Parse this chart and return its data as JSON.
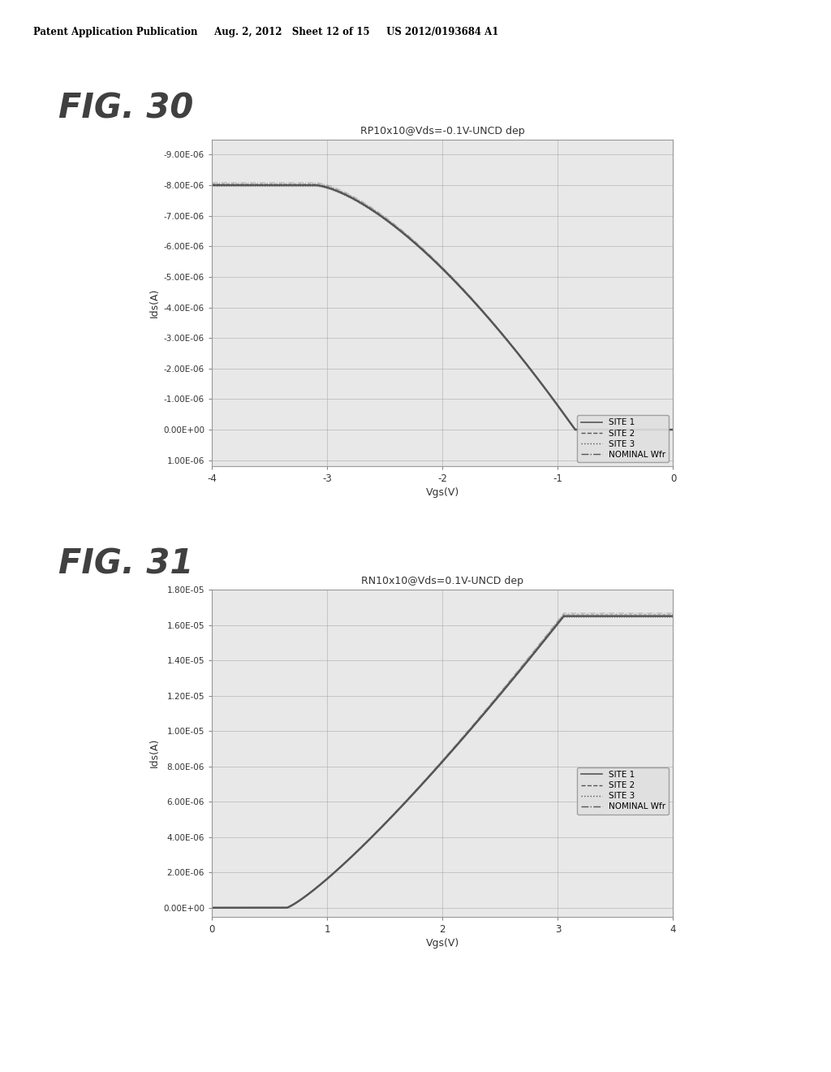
{
  "header_text": "Patent Application Publication     Aug. 2, 2012   Sheet 12 of 15     US 2012/0193684 A1",
  "fig30_label": "FIG. 30",
  "fig31_label": "FIG. 31",
  "fig30_title": "RP10x10@Vds=-0.1V-UNCD dep",
  "fig31_title": "RN10x10@Vds=0.1V-UNCD dep",
  "fig30_xlabel": "Vgs(V)",
  "fig31_xlabel": "Vgs(V)",
  "fig30_ylabel": "Ids(A)",
  "fig31_ylabel": "Ids(A)",
  "fig30_xlim": [
    -4,
    0
  ],
  "fig31_xlim": [
    0,
    4
  ],
  "fig30_yticks": [
    -9e-06,
    -8e-06,
    -7e-06,
    -6e-06,
    -5e-06,
    -4e-06,
    -3e-06,
    -2e-06,
    -1e-06,
    0.0,
    1e-06
  ],
  "fig31_yticks": [
    0,
    2e-06,
    4e-06,
    6e-06,
    8e-06,
    1e-05,
    1.2e-05,
    1.4e-05,
    1.6e-05,
    1.8e-05
  ],
  "fig30_xticks": [
    -4,
    -3,
    -2,
    -1,
    0
  ],
  "fig31_xticks": [
    0,
    1,
    2,
    3,
    4
  ],
  "fig30_ytick_labels": [
    "-9.00E-06",
    "-8.00E-06",
    "-7.00E-06",
    "-6.00E-06",
    "-5.00E-06",
    "-4.00E-06",
    "-3.00E-06",
    "-2.00E-06",
    "-1.00E-06",
    "0.00E+00",
    "1.00E-06"
  ],
  "fig31_ytick_labels": [
    "0.00E+00",
    "2.00E-06",
    "4.00E-06",
    "6.00E-06",
    "8.00E-06",
    "1.00E-05",
    "1.20E-05",
    "1.40E-05",
    "1.60E-05",
    "1.80E-05"
  ],
  "legend_entries": [
    "SITE 1",
    "SITE 2",
    "SITE 3",
    "NOMINAL Wfr"
  ],
  "line_color": "#555555",
  "plot_bg": "#e8e8e8",
  "fig_bg": "#ffffff",
  "inner_bg": "#d8d8d8"
}
